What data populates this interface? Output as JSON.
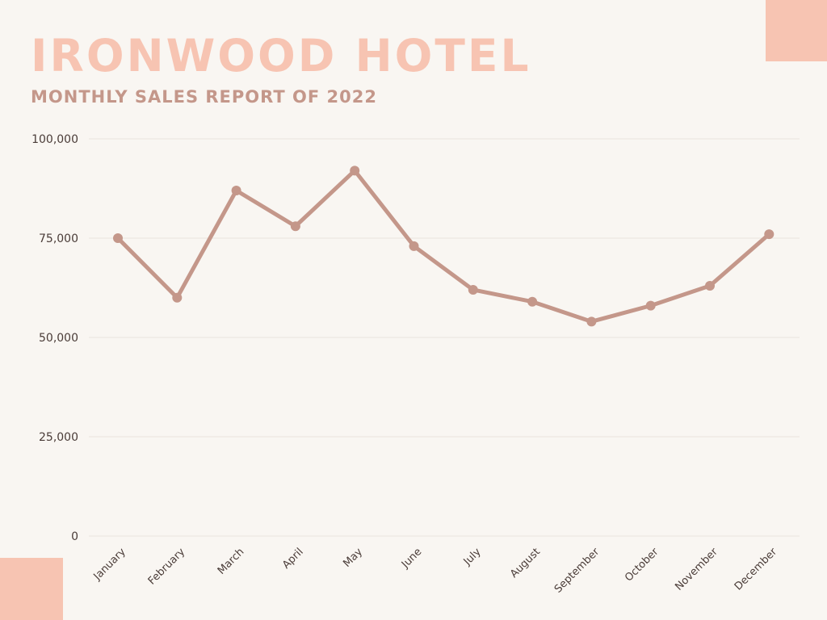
{
  "header": {
    "title": "IRONWOOD HOTEL",
    "subtitle": "MONTHLY SALES REPORT OF 2022"
  },
  "colors": {
    "background": "#f9f6f2",
    "accent": "#f7c4b2",
    "line": "#c4978a",
    "grid": "#e9e4df",
    "text": "#4a3c38"
  },
  "chart_data": {
    "type": "line",
    "title": "",
    "xlabel": "",
    "ylabel": "",
    "categories": [
      "January",
      "February",
      "March",
      "April",
      "May",
      "June",
      "July",
      "August",
      "September",
      "October",
      "November",
      "December"
    ],
    "series": [
      {
        "values": [
          75000,
          60000,
          87000,
          78000,
          92000,
          73000,
          62000,
          59000,
          54000,
          58000,
          63000,
          76000
        ]
      }
    ],
    "ylim": [
      0,
      100000
    ],
    "yticks": [
      0,
      25000,
      50000,
      75000,
      100000
    ],
    "ytick_labels": [
      "0",
      "25,000",
      "50,000",
      "75,000",
      "100,000"
    ],
    "grid": true,
    "legend": "none"
  }
}
